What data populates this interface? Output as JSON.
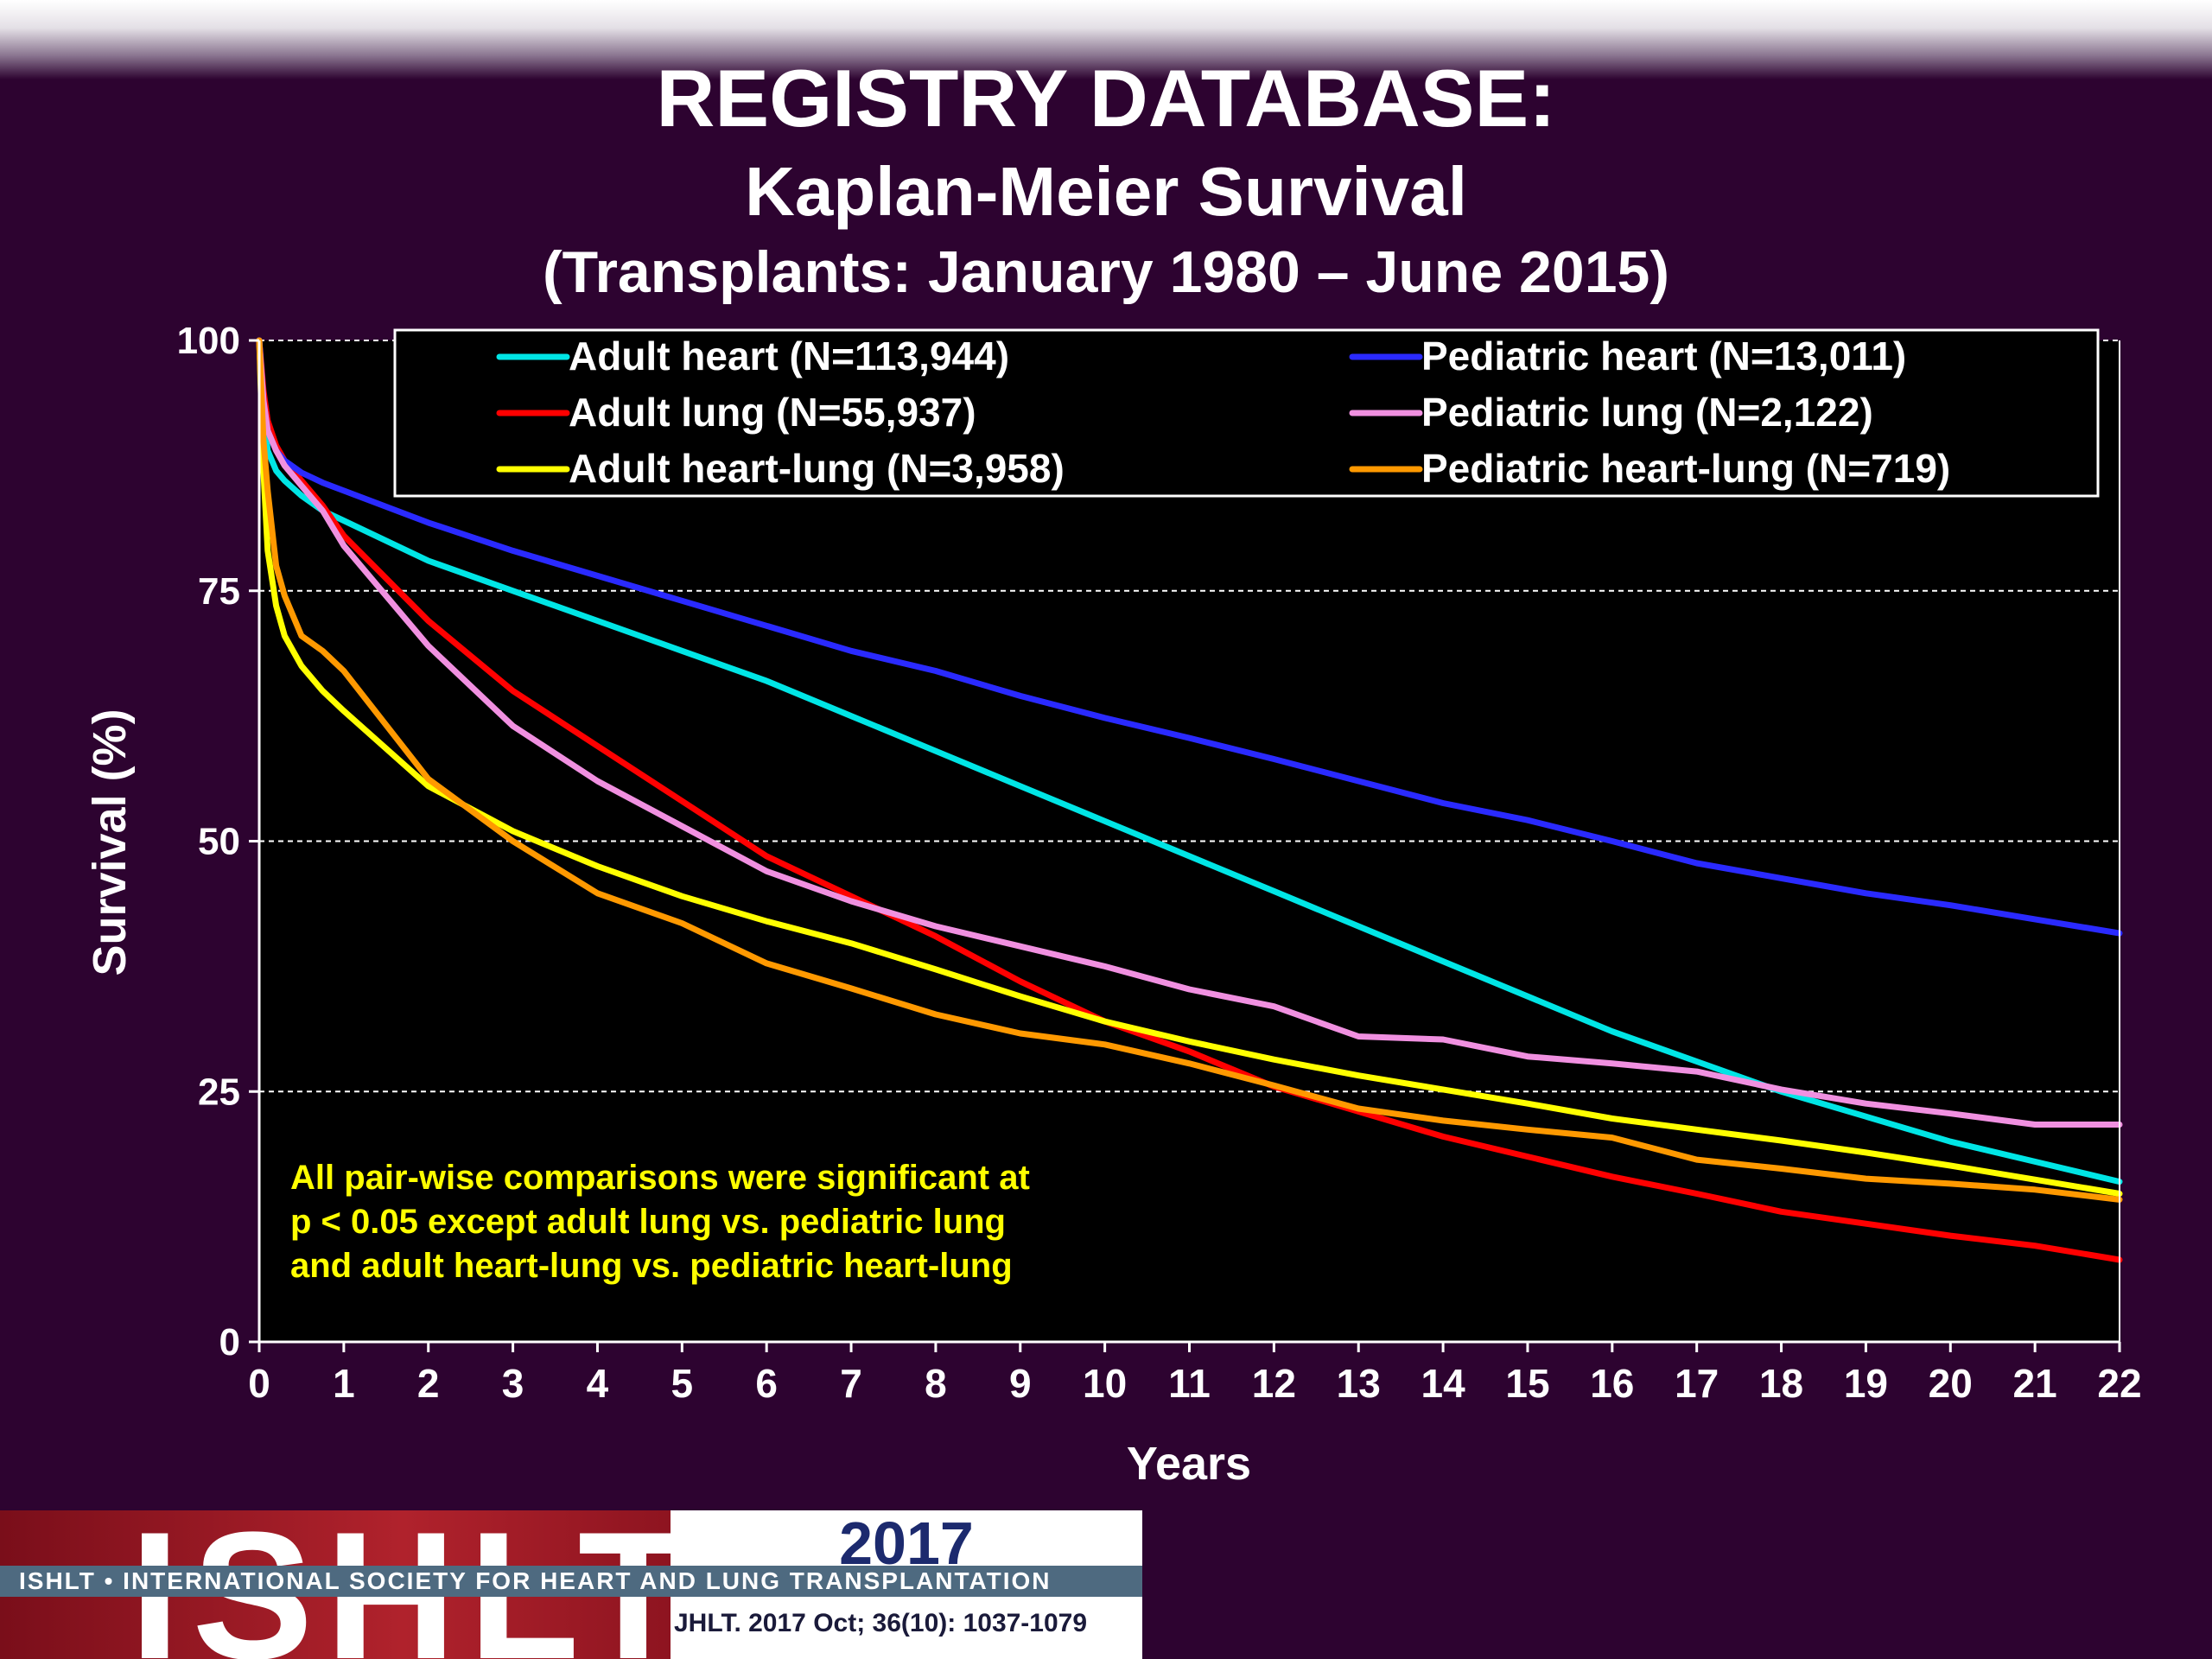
{
  "title": {
    "main": "REGISTRY DATABASE:",
    "sub1": "Kaplan-Meier Survival",
    "sub2": "(Transplants: January 1980 – June 2015)"
  },
  "annotation": [
    "All pair-wise comparisons were significant at",
    "p < 0.05 except adult lung vs. pediatric lung",
    "and adult heart-lung vs. pediatric heart-lung"
  ],
  "footer": {
    "logo_text": "ISHLT",
    "year": "2017",
    "society": "ISHLT • INTERNATIONAL SOCIETY FOR HEART AND LUNG TRANSPLANTATION",
    "citation": "JHLT. 2017 Oct; 36(10): 1037-1079"
  },
  "colors": {
    "background": "#2d0330",
    "plot_background": "#000000",
    "annotation_text": "#ffff00"
  },
  "chart_data": {
    "type": "line",
    "title": "",
    "xlabel": "Years",
    "ylabel": "Survival (%)",
    "xlim": [
      0,
      22
    ],
    "ylim": [
      0,
      100
    ],
    "xticks": [
      0,
      1,
      2,
      3,
      4,
      5,
      6,
      7,
      8,
      9,
      10,
      11,
      12,
      13,
      14,
      15,
      16,
      17,
      18,
      19,
      20,
      21,
      22
    ],
    "yticks": [
      0,
      25,
      50,
      75,
      100
    ],
    "grid": "horizontal dashed at 25, 50, 75, 100",
    "legend_position": "top",
    "series": [
      {
        "name": "Adult heart (N=113,944)",
        "color": "#00e5e5",
        "x": [
          0,
          0.05,
          0.1,
          0.2,
          0.3,
          0.5,
          0.75,
          1,
          2,
          3,
          4,
          5,
          6,
          7,
          8,
          9,
          10,
          11,
          12,
          13,
          14,
          15,
          16,
          17,
          18,
          19,
          20,
          21,
          22
        ],
        "y": [
          100,
          93,
          89,
          87,
          86,
          84.5,
          83,
          82,
          78,
          75,
          72,
          69,
          66,
          62.5,
          59,
          55.5,
          52,
          48.5,
          45,
          41.5,
          38,
          34.5,
          31,
          28,
          25,
          22.5,
          20,
          18,
          16
        ]
      },
      {
        "name": "Adult lung (N=55,937)",
        "color": "#ff0000",
        "x": [
          0,
          0.05,
          0.1,
          0.2,
          0.3,
          0.5,
          0.75,
          1,
          2,
          3,
          4,
          5,
          6,
          7,
          8,
          9,
          10,
          11,
          12,
          13,
          14,
          15,
          16,
          17,
          18,
          19,
          20,
          21,
          22
        ],
        "y": [
          100,
          95,
          92,
          89.5,
          88,
          86,
          83.5,
          80.5,
          72,
          65,
          59.5,
          54,
          48.5,
          44.5,
          40.5,
          36,
          32,
          29,
          25.5,
          23,
          20.5,
          18.5,
          16.5,
          14.8,
          13,
          11.8,
          10.6,
          9.6,
          8.2
        ]
      },
      {
        "name": "Adult heart-lung (N=3,958)",
        "color": "#ffff00",
        "x": [
          0,
          0.05,
          0.1,
          0.2,
          0.3,
          0.5,
          0.75,
          1,
          2,
          3,
          4,
          5,
          6,
          7,
          8,
          9,
          10,
          11,
          12,
          13,
          14,
          15,
          16,
          17,
          18,
          19,
          20,
          21,
          22
        ],
        "y": [
          100,
          87,
          79,
          73.5,
          70.5,
          67.5,
          65,
          63,
          55.5,
          51,
          47.5,
          44.5,
          42,
          39.8,
          37.2,
          34.5,
          32,
          30,
          28.2,
          26.6,
          25.2,
          23.8,
          22.3,
          21.2,
          20.1,
          18.9,
          17.6,
          16.2,
          14.8
        ]
      },
      {
        "name": "Pediatric heart (N=13,011)",
        "color": "#2a2aff",
        "x": [
          0,
          0.05,
          0.1,
          0.2,
          0.3,
          0.5,
          0.75,
          1,
          2,
          3,
          4,
          5,
          6,
          7,
          8,
          9,
          10,
          11,
          12,
          13,
          14,
          15,
          16,
          17,
          18,
          19,
          20,
          21,
          22
        ],
        "y": [
          100,
          94,
          91,
          89,
          88,
          86.8,
          85.8,
          85,
          81.8,
          79,
          76.5,
          74,
          71.5,
          69,
          67,
          64.5,
          62.3,
          60.3,
          58.2,
          56,
          53.8,
          52.1,
          50,
          47.8,
          46.3,
          44.8,
          43.6,
          42.2,
          40.8
        ]
      },
      {
        "name": "Pediatric lung (N=2,122)",
        "color": "#f090e0",
        "x": [
          0,
          0.05,
          0.1,
          0.2,
          0.3,
          0.5,
          0.75,
          1,
          2,
          3,
          4,
          5,
          6,
          7,
          8,
          9,
          10,
          11,
          12,
          13,
          14,
          15,
          16,
          17,
          18,
          19,
          20,
          21,
          22
        ],
        "y": [
          100,
          94,
          91,
          89,
          87.5,
          85.5,
          83,
          79.5,
          69.5,
          61.5,
          56,
          51.5,
          47,
          44,
          41.5,
          39.5,
          37.5,
          35.2,
          33.5,
          30.5,
          30.2,
          28.5,
          27.8,
          27,
          25.2,
          23.8,
          22.8,
          21.7,
          21.7
        ]
      },
      {
        "name": "Pediatric heart-lung (N=719)",
        "color": "#ff9900",
        "x": [
          0,
          0.05,
          0.1,
          0.2,
          0.3,
          0.5,
          0.75,
          1,
          2,
          3,
          4,
          5,
          6,
          7,
          8,
          9,
          10,
          11,
          12,
          13,
          14,
          15,
          16,
          17,
          18,
          19,
          20,
          21,
          22
        ],
        "y": [
          100,
          90,
          85,
          77.5,
          74.5,
          70.5,
          69,
          67,
          56.2,
          50,
          44.8,
          41.8,
          37.8,
          35.3,
          32.7,
          30.8,
          29.7,
          27.8,
          25.6,
          23.3,
          22.1,
          21.2,
          20.4,
          18.2,
          17.3,
          16.3,
          15.8,
          15.2,
          14.2
        ]
      }
    ]
  }
}
